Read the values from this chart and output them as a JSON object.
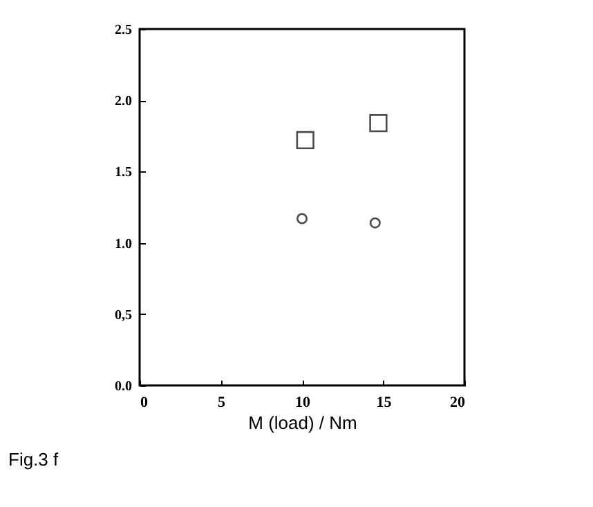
{
  "chart_data": {
    "type": "scatter",
    "xlabel": "M (load) / Nm",
    "series": [
      {
        "color": "#000000",
        "marker": "square",
        "x": [
          10.2,
          14.7
        ],
        "values": [
          1.72,
          1.84
        ]
      },
      {
        "color": "#000000",
        "marker": "circle",
        "x": [
          10.0,
          14.5
        ],
        "values": [
          1.17,
          1.14
        ]
      }
    ],
    "xlim": [
      0,
      20
    ],
    "xticks": [
      0,
      5,
      10,
      15,
      20
    ],
    "ylim": [
      0,
      2.5
    ],
    "yticks": [
      {
        "value": 0,
        "label": "0.0"
      },
      {
        "value": 0.5,
        "label": "0,5"
      },
      {
        "value": 1,
        "label": "1.0"
      },
      {
        "value": 1.5,
        "label": "1.5"
      },
      {
        "value": 2,
        "label": "2.0"
      },
      {
        "value": 2.5,
        "label": "2.5"
      }
    ],
    "annotations": [
      "Fig.3 f"
    ],
    "grid": false
  }
}
